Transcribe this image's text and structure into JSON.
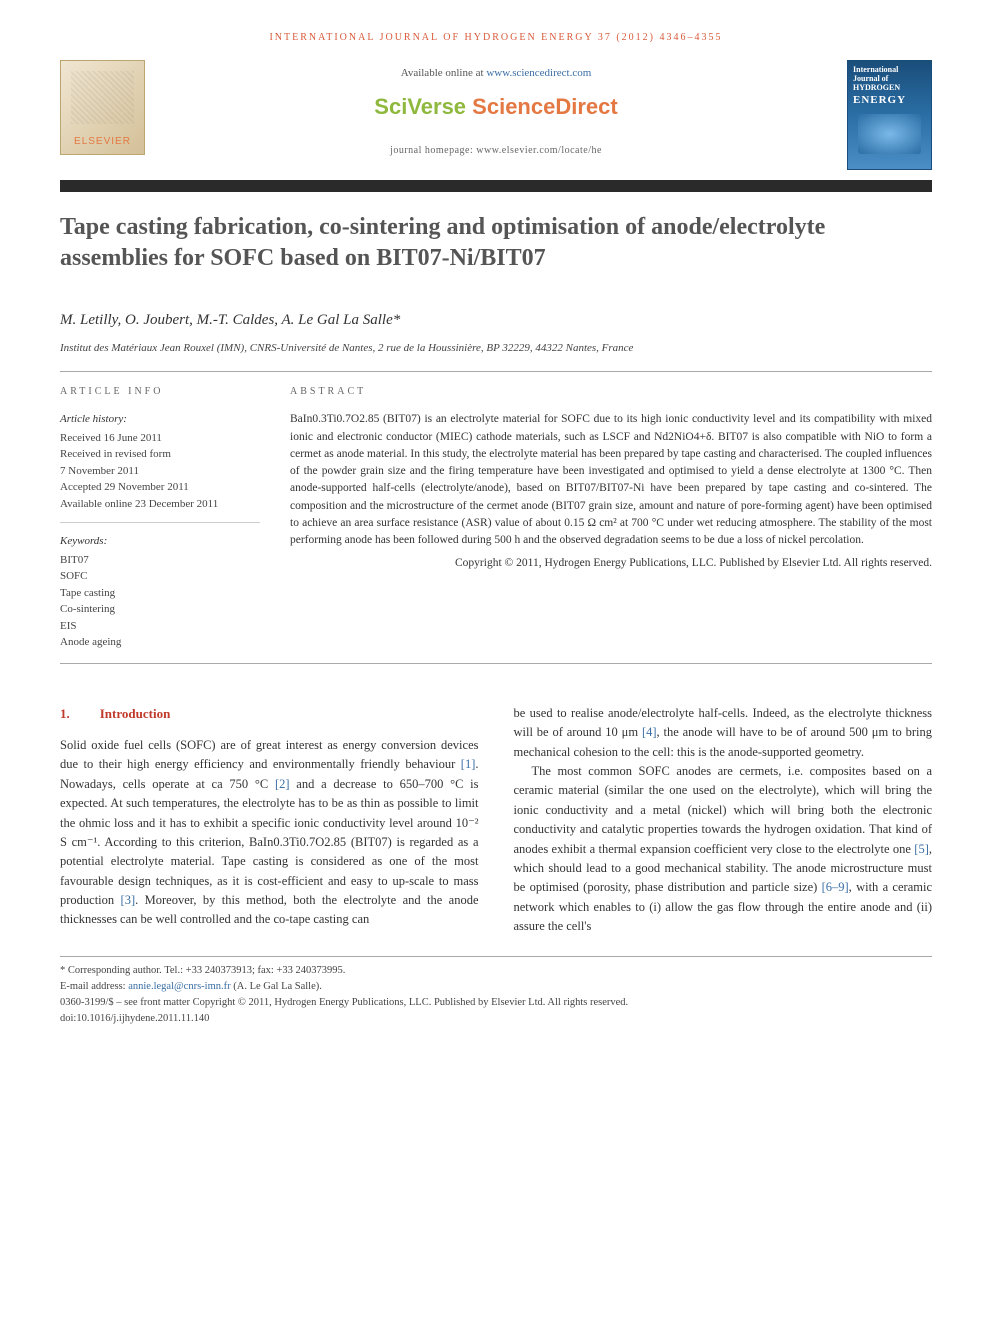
{
  "journal_header": "INTERNATIONAL JOURNAL OF HYDROGEN ENERGY 37 (2012) 4346–4355",
  "available_prefix": "Available online at ",
  "available_url": "www.sciencedirect.com",
  "sciverse_left": "SciVerse ",
  "sciverse_right": "ScienceDirect",
  "homepage": "journal homepage: www.elsevier.com/locate/he",
  "elsevier_label": "ELSEVIER",
  "cover": {
    "line1": "International Journal of",
    "line2": "HYDROGEN",
    "line3": "ENERGY"
  },
  "title": "Tape casting fabrication, co-sintering and optimisation of anode/electrolyte assemblies for SOFC based on BIT07-Ni/BIT07",
  "authors": "M. Letilly, O. Joubert, M.-T. Caldes, A. Le Gal La Salle*",
  "affiliation": "Institut des Matériaux Jean Rouxel (IMN), CNRS-Université de Nantes, 2 rue de la Houssinière, BP 32229, 44322 Nantes, France",
  "info": {
    "heading": "ARTICLE INFO",
    "history_label": "Article history:",
    "history": [
      "Received 16 June 2011",
      "Received in revised form",
      "7 November 2011",
      "Accepted 29 November 2011",
      "Available online 23 December 2011"
    ],
    "keywords_label": "Keywords:",
    "keywords": [
      "BIT07",
      "SOFC",
      "Tape casting",
      "Co-sintering",
      "EIS",
      "Anode ageing"
    ]
  },
  "abstract": {
    "heading": "ABSTRACT",
    "text": "BaIn0.3Ti0.7O2.85 (BIT07) is an electrolyte material for SOFC due to its high ionic conductivity level and its compatibility with mixed ionic and electronic conductor (MIEC) cathode materials, such as LSCF and Nd2NiO4+δ. BIT07 is also compatible with NiO to form a cermet as anode material. In this study, the electrolyte material has been prepared by tape casting and characterised. The coupled influences of the powder grain size and the firing temperature have been investigated and optimised to yield a dense electrolyte at 1300 °C. Then anode-supported half-cells (electrolyte/anode), based on BIT07/BIT07-Ni have been prepared by tape casting and co-sintered. The composition and the microstructure of the cermet anode (BIT07 grain size, amount and nature of pore-forming agent) have been optimised to achieve an area surface resistance (ASR) value of about 0.15 Ω cm² at 700 °C under wet reducing atmosphere. The stability of the most performing anode has been followed during 500 h and the observed degradation seems to be due a loss of nickel percolation.",
    "copyright": "Copyright © 2011, Hydrogen Energy Publications, LLC. Published by Elsevier Ltd. All rights reserved."
  },
  "section1": {
    "num": "1.",
    "title": "Introduction"
  },
  "body": {
    "p1a": "Solid oxide fuel cells (SOFC) are of great interest as energy conversion devices due to their high energy efficiency and environmentally friendly behaviour ",
    "p1b": ". Nowadays, cells operate at ca 750 °C ",
    "p1c": " and a decrease to 650–700 °C is expected. At such temperatures, the electrolyte has to be as thin as possible to limit the ohmic loss and it has to exhibit a specific ionic conductivity level around 10⁻² S cm⁻¹. According to this criterion, BaIn0.3Ti0.7O2.85 (BIT07) is regarded as a potential electrolyte material. Tape casting is considered as one of the most favourable design techniques, as it is cost-efficient and easy to up-scale to mass production ",
    "p1d": ". Moreover, by this method, both the electrolyte and the anode thicknesses can be well controlled and the co-tape casting can",
    "p2a": "be used to realise anode/electrolyte half-cells. Indeed, as the electrolyte thickness will be of around 10 μm ",
    "p2b": ", the anode will have to be of around 500 μm to bring mechanical cohesion to the cell: this is the anode-supported geometry.",
    "p3a": "The most common SOFC anodes are cermets, i.e. composites based on a ceramic material (similar the one used on the electrolyte), which will bring the ionic conductivity and a metal (nickel) which will bring both the electronic conductivity and catalytic properties towards the hydrogen oxidation. That kind of anodes exhibit a thermal expansion coefficient very close to the electrolyte one ",
    "p3b": ", which should lead to a good mechanical stability. The anode microstructure must be optimised (porosity, phase distribution and particle size) ",
    "p3c": ", with a ceramic network which enables to (i) allow the gas flow through the entire anode and (ii) assure the cell's"
  },
  "refs": {
    "r1": "[1]",
    "r2": "[2]",
    "r3": "[3]",
    "r4": "[4]",
    "r5": "[5]",
    "r69": "[6–9]"
  },
  "footnotes": {
    "corr": "* Corresponding author. Tel.: +33 240373913; fax: +33 240373995.",
    "email_label": "E-mail address: ",
    "email": "annie.legal@cnrs-imn.fr",
    "email_suffix": " (A. Le Gal La Salle).",
    "line1": "0360-3199/$ – see front matter Copyright © 2011, Hydrogen Energy Publications, LLC. Published by Elsevier Ltd. All rights reserved.",
    "doi": "doi:10.1016/j.ijhydene.2011.11.140"
  }
}
